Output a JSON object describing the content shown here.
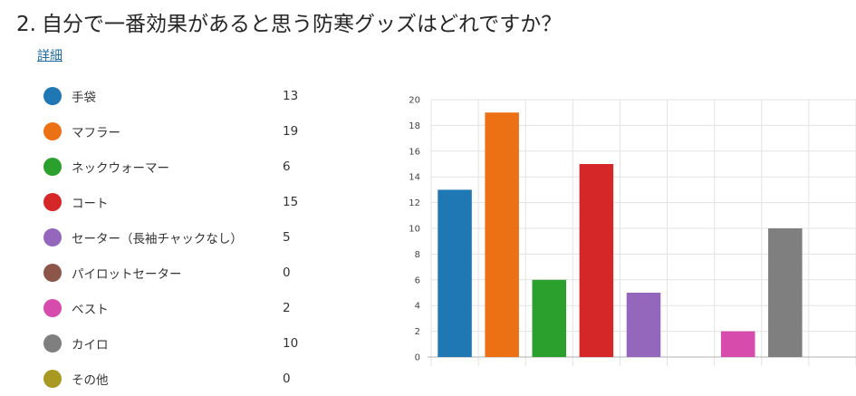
{
  "question": {
    "number": "2.",
    "text": "自分で一番効果があると思う防寒グッズはどれですか？",
    "details_label": "詳細"
  },
  "chart_data": {
    "type": "bar",
    "categories": [
      "手袋",
      "マフラー",
      "ネックウォーマー",
      "コート",
      "セーター（長袖チャックなし）",
      "パイロットセーター",
      "ベスト",
      "カイロ",
      "その他"
    ],
    "values": [
      13,
      19,
      6,
      15,
      5,
      0,
      2,
      10,
      0
    ],
    "colors": [
      "#1f77b4",
      "#ec7014",
      "#2ca02c",
      "#d62728",
      "#9467bd",
      "#8c564b",
      "#d64bac",
      "#7f7f7f",
      "#a89a20"
    ],
    "ylim": [
      0,
      20
    ],
    "yticks": [
      "0",
      "2",
      "4",
      "6",
      "8",
      "10",
      "12",
      "14",
      "16",
      "18",
      "20"
    ],
    "grid": true,
    "legend_position": "left"
  }
}
